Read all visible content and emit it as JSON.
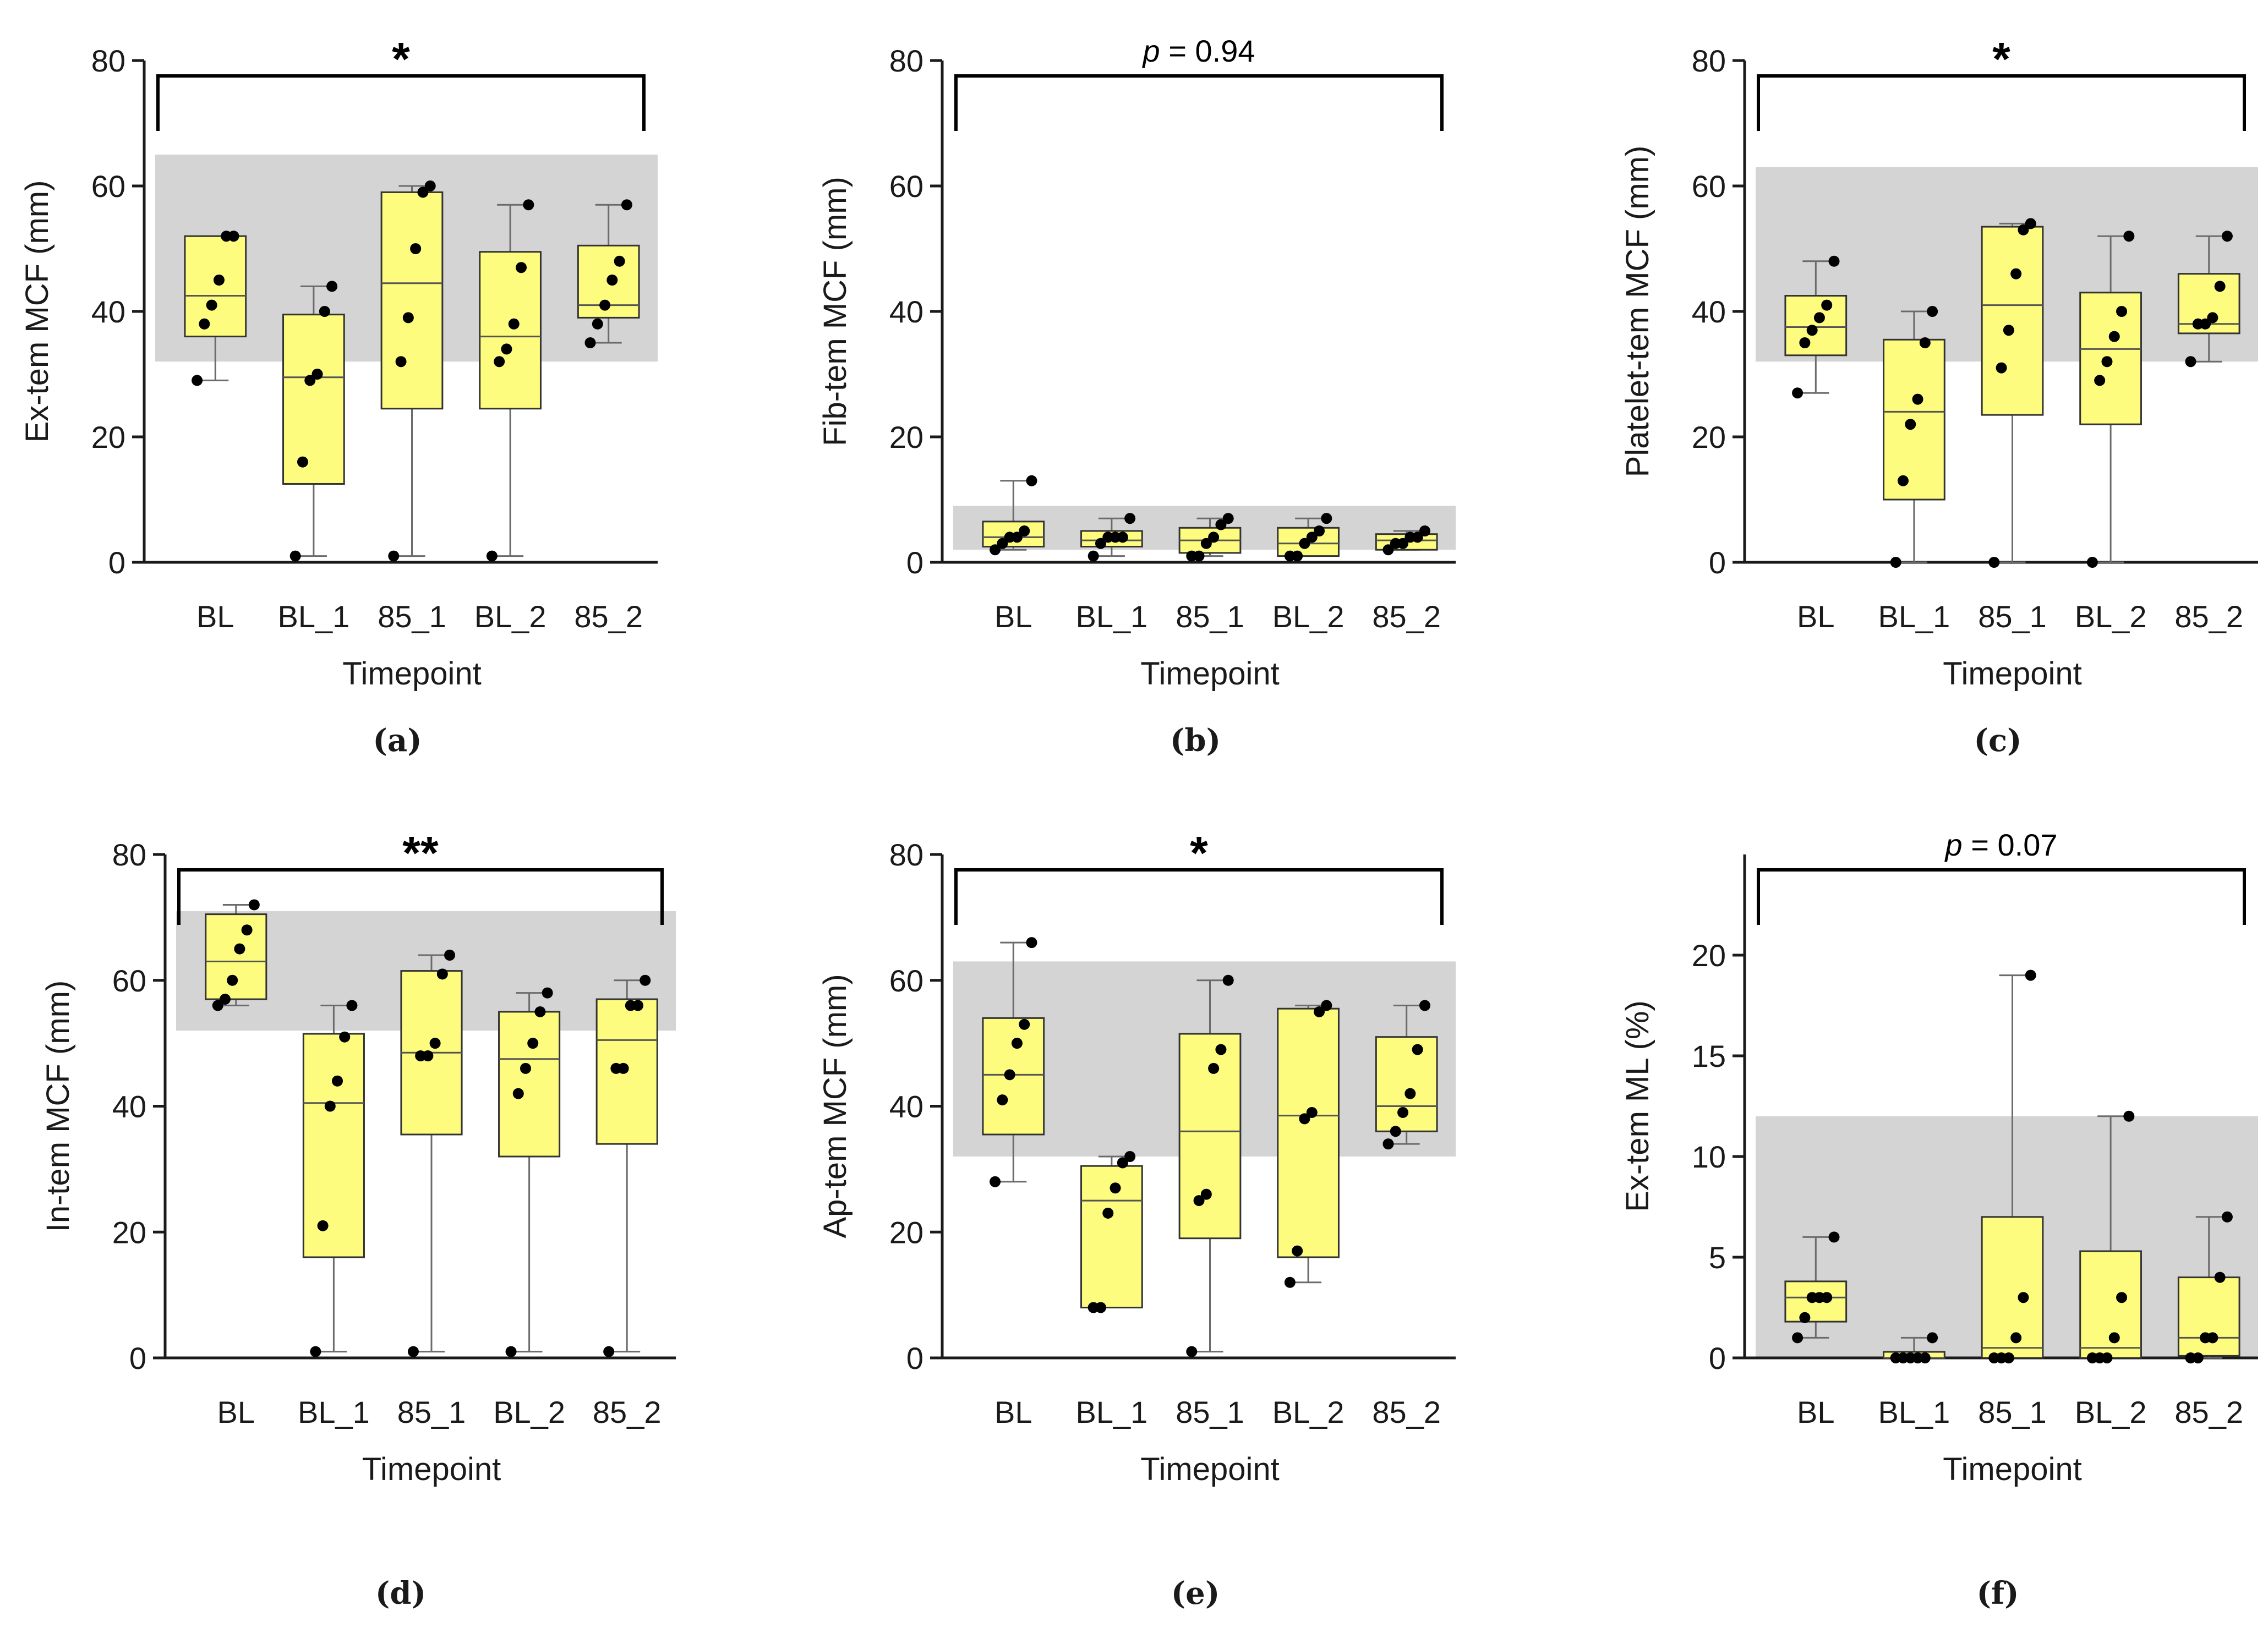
{
  "chart_data": [
    {
      "type": "box",
      "panel_label": "(a)",
      "ylabel": "Ex-tem MCF (mm)",
      "xlabel": "Timepoint",
      "ylim": [
        0,
        80
      ],
      "yticks": [
        "0",
        "20",
        "40",
        "60",
        "80"
      ],
      "categories": [
        "BL",
        "BL_1",
        "85_1",
        "BL_2",
        "85_2"
      ],
      "reference_range": [
        32,
        65
      ],
      "significance": "*",
      "boxes": [
        {
          "q1": 36,
          "median": 42.5,
          "q3": 52,
          "min": 29,
          "max": 52
        },
        {
          "q1": 12.5,
          "median": 29.5,
          "q3": 39.5,
          "min": 1,
          "max": 44
        },
        {
          "q1": 24.5,
          "median": 44.5,
          "q3": 59,
          "min": 1,
          "max": 60
        },
        {
          "q1": 24.5,
          "median": 36,
          "q3": 49.5,
          "min": 1,
          "max": 57
        },
        {
          "q1": 39,
          "median": 41,
          "q3": 50.5,
          "min": 35,
          "max": 57
        }
      ],
      "points": [
        [
          29,
          38,
          41,
          45,
          52,
          52
        ],
        [
          1,
          16,
          29,
          30,
          40,
          44
        ],
        [
          1,
          32,
          39,
          50,
          59,
          60
        ],
        [
          1,
          32,
          34,
          38,
          47,
          57
        ],
        [
          35,
          38,
          41,
          45,
          48,
          57
        ]
      ]
    },
    {
      "type": "box",
      "panel_label": "(b)",
      "ylabel": "Fib-tem MCF (mm)",
      "xlabel": "Timepoint",
      "ylim": [
        0,
        80
      ],
      "yticks": [
        "0",
        "20",
        "40",
        "60",
        "80"
      ],
      "categories": [
        "BL",
        "BL_1",
        "85_1",
        "BL_2",
        "85_2"
      ],
      "reference_range": [
        2,
        9
      ],
      "significance_prefix": "p",
      "significance_value": " = 0.94",
      "boxes": [
        {
          "q1": 2.5,
          "median": 4,
          "q3": 6.5,
          "min": 2,
          "max": 13
        },
        {
          "q1": 2.5,
          "median": 3.5,
          "q3": 5,
          "min": 1,
          "max": 7
        },
        {
          "q1": 1.5,
          "median": 3.5,
          "q3": 5.5,
          "min": 1,
          "max": 7
        },
        {
          "q1": 1,
          "median": 3,
          "q3": 5.5,
          "min": 1,
          "max": 7
        },
        {
          "q1": 2,
          "median": 3.5,
          "q3": 4.5,
          "min": 2,
          "max": 5
        }
      ],
      "points": [
        [
          2,
          3,
          4,
          4,
          5,
          13
        ],
        [
          1,
          3,
          4,
          4,
          4,
          7
        ],
        [
          1,
          1,
          3,
          4,
          6,
          7
        ],
        [
          1,
          1,
          3,
          4,
          5,
          7
        ],
        [
          2,
          3,
          3,
          4,
          4,
          5
        ]
      ]
    },
    {
      "type": "box",
      "panel_label": "(c)",
      "ylabel": "Platelet-tem MCF (mm)",
      "xlabel": "Timepoint",
      "ylim": [
        0,
        80
      ],
      "yticks": [
        "0",
        "20",
        "40",
        "60",
        "80"
      ],
      "categories": [
        "BL",
        "BL_1",
        "85_1",
        "BL_2",
        "85_2"
      ],
      "reference_range": [
        32,
        63
      ],
      "significance": "*",
      "boxes": [
        {
          "q1": 33,
          "median": 37.5,
          "q3": 42.5,
          "min": 27,
          "max": 48
        },
        {
          "q1": 10,
          "median": 24,
          "q3": 35.5,
          "min": 0,
          "max": 40
        },
        {
          "q1": 23.5,
          "median": 41,
          "q3": 53.5,
          "min": 0,
          "max": 54
        },
        {
          "q1": 22,
          "median": 34,
          "q3": 43,
          "min": 0,
          "max": 52
        },
        {
          "q1": 36.5,
          "median": 38,
          "q3": 46,
          "min": 32,
          "max": 52
        }
      ],
      "points": [
        [
          27,
          35,
          37,
          39,
          41,
          48
        ],
        [
          0,
          13,
          22,
          26,
          35,
          40
        ],
        [
          0,
          31,
          37,
          46,
          53,
          54
        ],
        [
          0,
          29,
          32,
          36,
          40,
          52
        ],
        [
          32,
          38,
          38,
          39,
          44,
          52
        ]
      ]
    },
    {
      "type": "box",
      "panel_label": "(d)",
      "ylabel": "In-tem MCF (mm)",
      "xlabel": "Timepoint",
      "ylim": [
        0,
        80
      ],
      "yticks": [
        "0",
        "20",
        "40",
        "60",
        "80"
      ],
      "categories": [
        "BL",
        "BL_1",
        "85_1",
        "BL_2",
        "85_2"
      ],
      "reference_range": [
        52,
        71
      ],
      "significance": "**",
      "boxes": [
        {
          "q1": 57,
          "median": 63,
          "q3": 70.5,
          "min": 56,
          "max": 72
        },
        {
          "q1": 16,
          "median": 40.5,
          "q3": 51.5,
          "min": 1,
          "max": 56
        },
        {
          "q1": 35.5,
          "median": 48.5,
          "q3": 61.5,
          "min": 1,
          "max": 64
        },
        {
          "q1": 32,
          "median": 47.5,
          "q3": 55,
          "min": 1,
          "max": 58
        },
        {
          "q1": 34,
          "median": 50.5,
          "q3": 57,
          "min": 1,
          "max": 60
        }
      ],
      "points": [
        [
          56,
          57,
          60,
          65,
          68,
          72
        ],
        [
          1,
          21,
          40,
          44,
          51,
          56
        ],
        [
          1,
          48,
          48,
          50,
          61,
          64
        ],
        [
          1,
          42,
          46,
          50,
          55,
          58
        ],
        [
          1,
          46,
          46,
          56,
          56,
          60
        ]
      ]
    },
    {
      "type": "box",
      "panel_label": "(e)",
      "ylabel": "Ap-tem MCF (mm)",
      "xlabel": "Timepoint",
      "ylim": [
        0,
        80
      ],
      "yticks": [
        "0",
        "20",
        "40",
        "60",
        "80"
      ],
      "categories": [
        "BL",
        "BL_1",
        "85_1",
        "BL_2",
        "85_2"
      ],
      "reference_range": [
        32,
        63
      ],
      "significance": "*",
      "boxes": [
        {
          "q1": 35.5,
          "median": 45,
          "q3": 54,
          "min": 28,
          "max": 66
        },
        {
          "q1": 8,
          "median": 25,
          "q3": 30.5,
          "min": 8,
          "max": 32
        },
        {
          "q1": 19,
          "median": 36,
          "q3": 51.5,
          "min": 1,
          "max": 60
        },
        {
          "q1": 16,
          "median": 38.5,
          "q3": 55.5,
          "min": 12,
          "max": 56
        },
        {
          "q1": 36,
          "median": 40,
          "q3": 51,
          "min": 34,
          "max": 56
        }
      ],
      "points": [
        [
          28,
          41,
          45,
          50,
          53,
          66
        ],
        [
          8,
          8,
          23,
          27,
          31,
          32
        ],
        [
          1,
          25,
          26,
          46,
          49,
          60
        ],
        [
          12,
          17,
          38,
          39,
          55,
          56
        ],
        [
          34,
          36,
          39,
          42,
          49,
          56
        ]
      ]
    },
    {
      "type": "box",
      "panel_label": "(f)",
      "ylabel": "Ex-tem ML (%)",
      "xlabel": "Timepoint",
      "ylim": [
        0,
        25
      ],
      "yticks": [
        "0",
        "5",
        "10",
        "15",
        "20"
      ],
      "categories": [
        "BL",
        "BL_1",
        "85_1",
        "BL_2",
        "85_2"
      ],
      "reference_range": [
        0,
        12
      ],
      "significance_prefix": "p",
      "significance_value": " = 0.07",
      "boxes": [
        {
          "q1": 1.8,
          "median": 3,
          "q3": 3.8,
          "min": 1,
          "max": 6
        },
        {
          "q1": 0,
          "median": 0,
          "q3": 0.3,
          "min": 0,
          "max": 1
        },
        {
          "q1": 0,
          "median": 0.5,
          "q3": 7,
          "min": 0,
          "max": 19
        },
        {
          "q1": 0,
          "median": 0.5,
          "q3": 5.3,
          "min": 0,
          "max": 12
        },
        {
          "q1": 0.1,
          "median": 1,
          "q3": 4,
          "min": 0,
          "max": 7
        }
      ],
      "points": [
        [
          1,
          2,
          3,
          3,
          3,
          6
        ],
        [
          0,
          0,
          0,
          0,
          0,
          1
        ],
        [
          0,
          0,
          0,
          1,
          3,
          19
        ],
        [
          0,
          0,
          0,
          1,
          3,
          12
        ],
        [
          0,
          0,
          1,
          1,
          4,
          7
        ]
      ]
    }
  ],
  "colors": {
    "box_fill": "#fdfc7e",
    "reference_band": "#d4d4d4",
    "ink": "#1a1a1a"
  }
}
